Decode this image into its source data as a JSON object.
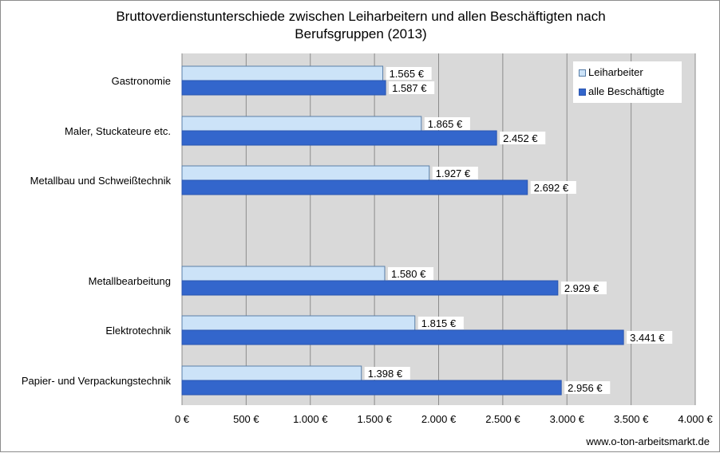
{
  "chart_data": {
    "type": "bar",
    "orientation": "horizontal",
    "title_lines": [
      "Bruttoverdienstunterschiede zwischen Leiharbeitern und allen  Beschäftigten nach",
      "Berufsgruppen (2013)"
    ],
    "groups": [
      {
        "categories": [
          "Gastronomie",
          "Maler, Stuckateure etc.",
          "Metallbau und Schweißtechnik"
        ]
      },
      {
        "categories": [
          "Metallbearbeitung",
          "Elektrotechnik",
          "Papier- und Verpackungstechnik"
        ]
      }
    ],
    "series": [
      {
        "name": "Leiharbeiter",
        "color": "#cce3f8",
        "stroke": "#5a7fa8",
        "values": [
          1565,
          1865,
          1927,
          1580,
          1815,
          1398
        ],
        "labels": [
          "1.565 €",
          "1.865 €",
          "1.927 €",
          "1.580 €",
          "1.815 €",
          "1.398 €"
        ]
      },
      {
        "name": "alle Beschäftigte",
        "color": "#3366cc",
        "stroke": "#2a55b0",
        "values": [
          1587,
          2452,
          2692,
          2929,
          3441,
          2956
        ],
        "labels": [
          "1.587 €",
          "2.452 €",
          "2.692 €",
          "2.929 €",
          "3.441 €",
          "2.956 €"
        ]
      }
    ],
    "xlim": [
      0,
      4000
    ],
    "x_ticks": [
      0,
      500,
      1000,
      1500,
      2000,
      2500,
      3000,
      3500,
      4000
    ],
    "x_tick_labels": [
      "0 €",
      "500 €",
      "1.000 €",
      "1.500 €",
      "2.000 €",
      "2.500 €",
      "3.000 €",
      "3.500 €",
      "4.000 €"
    ],
    "grid": "vertical",
    "plot_background": "#d9d9d9",
    "legend_position": "top-right"
  },
  "source_text": "www.o-ton-arbeitsmarkt.de"
}
